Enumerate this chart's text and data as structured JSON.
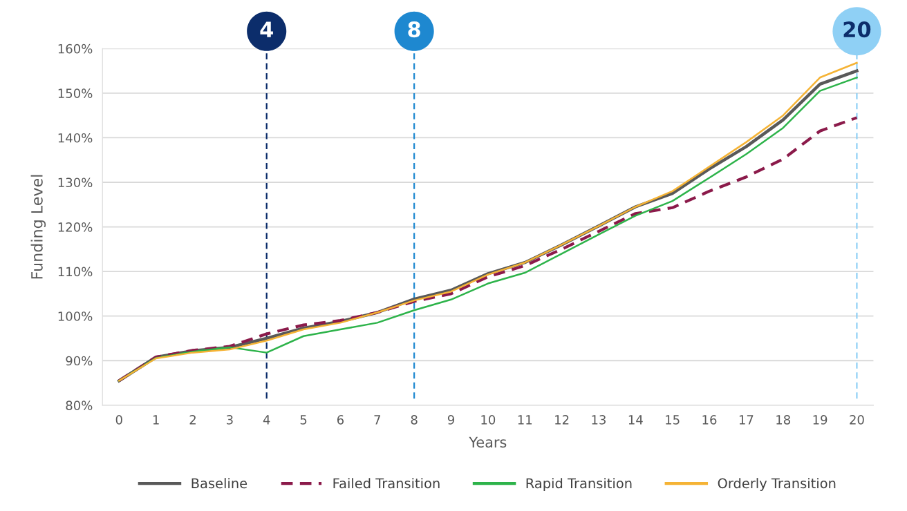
{
  "chart_data": {
    "type": "line",
    "xlabel": "Years",
    "ylabel": "Funding Level",
    "x": [
      0,
      1,
      2,
      3,
      4,
      5,
      6,
      7,
      8,
      9,
      10,
      11,
      12,
      13,
      14,
      15,
      16,
      17,
      18,
      19,
      20
    ],
    "xlim": [
      -0.45,
      20.45
    ],
    "xticks": [
      0,
      1,
      2,
      3,
      4,
      5,
      6,
      7,
      8,
      9,
      10,
      11,
      12,
      13,
      14,
      15,
      16,
      17,
      18,
      19,
      20
    ],
    "ylim": [
      80,
      160
    ],
    "yticks": [
      {
        "value": 80,
        "label": "80%"
      },
      {
        "value": 90,
        "label": "90%"
      },
      {
        "value": 100,
        "label": "100%"
      },
      {
        "value": 110,
        "label": "110%"
      },
      {
        "value": 120,
        "label": "120%"
      },
      {
        "value": 130,
        "label": "130%"
      },
      {
        "value": 140,
        "label": "140%"
      },
      {
        "value": 150,
        "label": "150%"
      },
      {
        "value": 160,
        "label": "160%"
      }
    ],
    "grid": "y",
    "legend": "bottom",
    "series": [
      {
        "name": "Baseline",
        "color": "#595959",
        "line_style": "solid",
        "values": [
          85.5,
          90.8,
          92.2,
          93,
          95,
          97.3,
          98.8,
          100.8,
          103.8,
          105.8,
          109.5,
          112,
          116,
          120.2,
          124.5,
          127.5,
          133,
          138,
          144,
          152,
          155
        ]
      },
      {
        "name": "Failed Transition",
        "color": "#8b1a4a",
        "line_style": "dashed",
        "values": [
          85.5,
          90.8,
          92.3,
          93.2,
          96,
          98,
          99,
          100.8,
          103.3,
          105,
          108.8,
          111.3,
          115,
          119,
          123,
          124.3,
          128,
          131.2,
          135.2,
          141.5,
          144.5
        ]
      },
      {
        "name": "Rapid Transition",
        "color": "#2db34a",
        "line_style": "solid",
        "values": [
          85.5,
          90.6,
          92,
          93,
          91.8,
          95.5,
          97,
          98.5,
          101.3,
          103.7,
          107.3,
          109.7,
          114,
          118.3,
          122.5,
          125.8,
          131,
          136.3,
          142.2,
          150.5,
          153.5
        ]
      },
      {
        "name": "Orderly Transition",
        "color": "#f5b335",
        "line_style": "solid",
        "values": [
          85.5,
          90.5,
          91.8,
          92.5,
          94.5,
          97,
          98.5,
          100.8,
          103.5,
          105.5,
          109.3,
          112,
          116,
          120.2,
          124.5,
          128,
          133.5,
          139,
          145,
          153.5,
          156.8
        ]
      }
    ],
    "ref_lines": [
      {
        "axis": "x",
        "value": 4,
        "label": "4",
        "color": "#0c2d6b",
        "line_style": "dashed"
      },
      {
        "axis": "x",
        "value": 8,
        "label": "8",
        "color": "#1e88d0",
        "line_style": "dashed"
      },
      {
        "axis": "x",
        "value": 20,
        "label": "20",
        "color": "#8fd0f5",
        "line_style": "dashed"
      }
    ]
  }
}
